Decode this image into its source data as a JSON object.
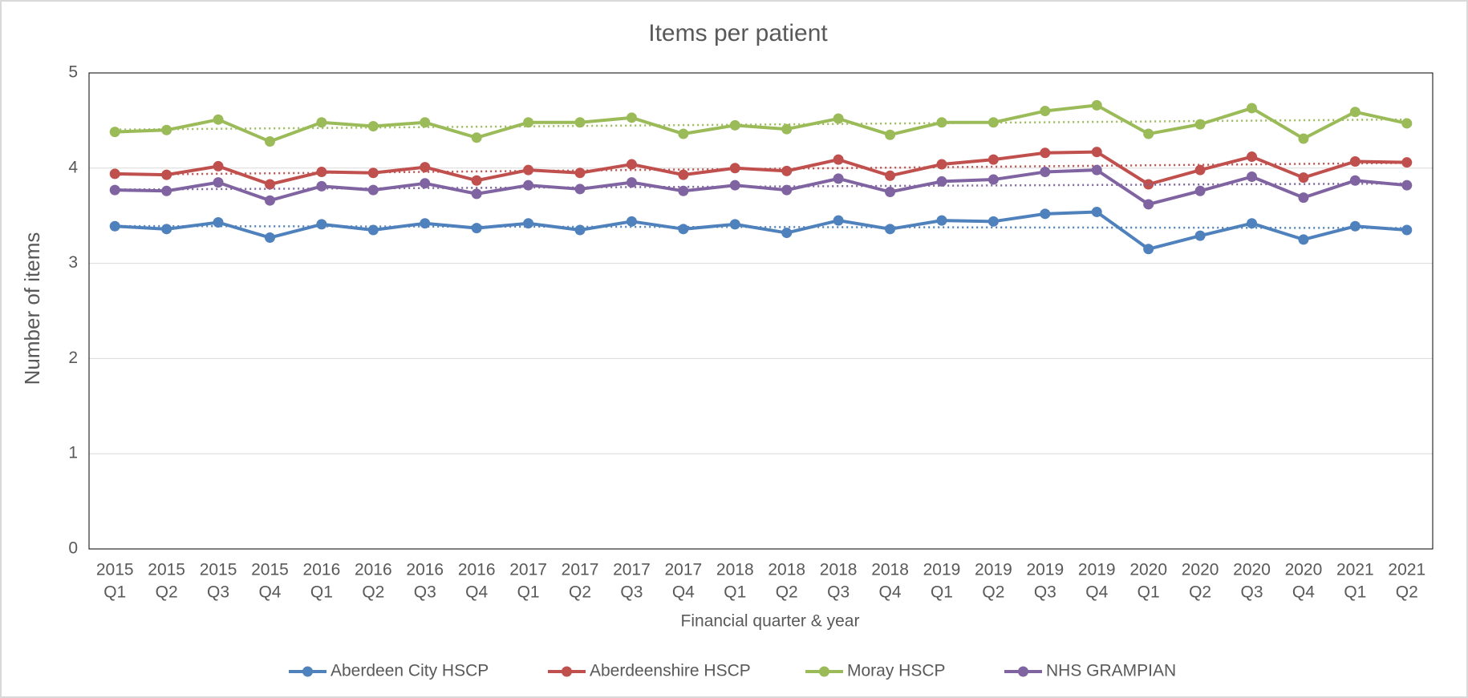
{
  "chart_data": {
    "type": "line",
    "title": "Items per patient",
    "x_label": "Financial quarter & year",
    "y_label": "Number of items",
    "categories": [
      [
        "2015",
        "Q1"
      ],
      [
        "2015",
        "Q2"
      ],
      [
        "2015",
        "Q3"
      ],
      [
        "2015",
        "Q4"
      ],
      [
        "2016",
        "Q1"
      ],
      [
        "2016",
        "Q2"
      ],
      [
        "2016",
        "Q3"
      ],
      [
        "2016",
        "Q4"
      ],
      [
        "2017",
        "Q1"
      ],
      [
        "2017",
        "Q2"
      ],
      [
        "2017",
        "Q3"
      ],
      [
        "2017",
        "Q4"
      ],
      [
        "2018",
        "Q1"
      ],
      [
        "2018",
        "Q2"
      ],
      [
        "2018",
        "Q3"
      ],
      [
        "2018",
        "Q4"
      ],
      [
        "2019",
        "Q1"
      ],
      [
        "2019",
        "Q2"
      ],
      [
        "2019",
        "Q3"
      ],
      [
        "2019",
        "Q4"
      ],
      [
        "2020",
        "Q1"
      ],
      [
        "2020",
        "Q2"
      ],
      [
        "2020",
        "Q3"
      ],
      [
        "2020",
        "Q4"
      ],
      [
        "2021",
        "Q1"
      ],
      [
        "2021",
        "Q2"
      ]
    ],
    "series": [
      {
        "name": "Aberdeen City HSCP",
        "color": "#4f81bd",
        "values": [
          3.39,
          3.36,
          3.43,
          3.27,
          3.41,
          3.35,
          3.42,
          3.37,
          3.42,
          3.35,
          3.44,
          3.36,
          3.41,
          3.32,
          3.45,
          3.36,
          3.45,
          3.44,
          3.52,
          3.54,
          3.15,
          3.29,
          3.42,
          3.25,
          3.39,
          3.35
        ]
      },
      {
        "name": "Aberdeenshire HSCP",
        "color": "#c0504d",
        "values": [
          3.94,
          3.93,
          4.02,
          3.83,
          3.96,
          3.95,
          4.01,
          3.87,
          3.98,
          3.95,
          4.04,
          3.93,
          4.0,
          3.97,
          4.09,
          3.92,
          4.04,
          4.09,
          4.16,
          4.17,
          3.83,
          3.98,
          4.12,
          3.9,
          4.07,
          4.06
        ]
      },
      {
        "name": "Moray HSCP",
        "color": "#9bbb59",
        "values": [
          4.38,
          4.4,
          4.51,
          4.28,
          4.48,
          4.44,
          4.48,
          4.32,
          4.48,
          4.48,
          4.53,
          4.36,
          4.45,
          4.41,
          4.52,
          4.35,
          4.48,
          4.48,
          4.6,
          4.66,
          4.36,
          4.46,
          4.63,
          4.31,
          4.59,
          4.47
        ]
      },
      {
        "name": "NHS GRAMPIAN",
        "color": "#8064a2",
        "values": [
          3.77,
          3.76,
          3.85,
          3.66,
          3.81,
          3.77,
          3.84,
          3.73,
          3.82,
          3.78,
          3.85,
          3.76,
          3.82,
          3.77,
          3.89,
          3.75,
          3.86,
          3.88,
          3.96,
          3.98,
          3.62,
          3.76,
          3.91,
          3.69,
          3.87,
          3.82
        ]
      }
    ],
    "ylim": [
      0,
      5
    ],
    "yticks": [
      0,
      1,
      2,
      3,
      4,
      5
    ],
    "grid": true,
    "trendline": true,
    "legend": "bottom"
  }
}
